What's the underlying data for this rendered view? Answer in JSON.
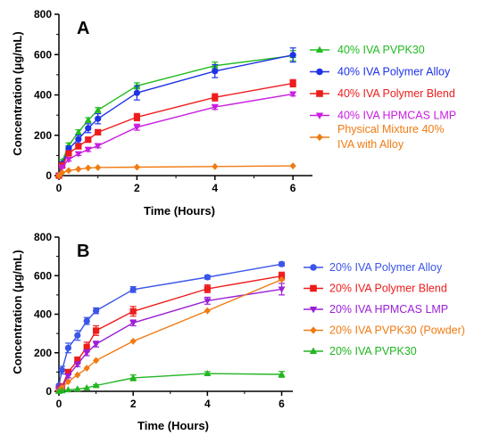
{
  "colors": {
    "green": "#22bb22",
    "blue": "#1f33e6",
    "red": "#ee1c1c",
    "magenta": "#c81ee0",
    "orange": "#f07b12",
    "blue_light": "#3a55e8",
    "purple": "#9b1fd8",
    "green_b": "#22b522"
  },
  "chart_data": [
    {
      "type": "line",
      "panel": "A",
      "xlabel": "Time  (Hours)",
      "ylabel": "Concentration  (μg/mL)",
      "xlim": [
        0,
        6.5
      ],
      "ylim": [
        0,
        800
      ],
      "xticks": [
        "0",
        "2",
        "4",
        "6"
      ],
      "yticks": [
        "0",
        "200",
        "400",
        "600",
        "800"
      ],
      "legend_position": "right",
      "series": [
        {
          "name": "40% IVA PVPK30",
          "color": "green",
          "marker": "triangle-up",
          "x": [
            0,
            0.083,
            0.25,
            0.5,
            0.75,
            1,
            2,
            4,
            6
          ],
          "y": [
            0,
            70,
            150,
            215,
            275,
            325,
            445,
            545,
            595
          ],
          "err": [
            0,
            10,
            12,
            12,
            12,
            12,
            15,
            18,
            25
          ]
        },
        {
          "name": "40% IVA Polymer  Alloy",
          "color": "blue",
          "marker": "circle",
          "x": [
            0,
            0.083,
            0.25,
            0.5,
            0.75,
            1,
            2,
            4,
            6
          ],
          "y": [
            0,
            58,
            132,
            180,
            235,
            282,
            410,
            518,
            598
          ],
          "err": [
            0,
            8,
            15,
            20,
            22,
            25,
            35,
            32,
            35
          ]
        },
        {
          "name": "40% IVA Polymer Blend",
          "color": "red",
          "marker": "square",
          "x": [
            0,
            0.083,
            0.25,
            0.5,
            0.75,
            1,
            2,
            4,
            6
          ],
          "y": [
            0,
            50,
            110,
            145,
            178,
            215,
            290,
            388,
            458
          ],
          "err": [
            0,
            6,
            10,
            10,
            12,
            12,
            18,
            18,
            18
          ]
        },
        {
          "name": "40% IVA HPMCAS LMP",
          "color": "magenta",
          "marker": "triangle-down",
          "x": [
            0,
            0.083,
            0.25,
            0.5,
            0.75,
            1,
            2,
            4,
            6
          ],
          "y": [
            0,
            42,
            80,
            108,
            130,
            148,
            240,
            340,
            405
          ],
          "err": [
            0,
            5,
            8,
            8,
            10,
            10,
            15,
            12,
            10
          ]
        },
        {
          "name": "Physical Mixture 40% IVA with Alloy",
          "legend_lines": [
            "Physical Mixture 40%",
            "IVA with Alloy"
          ],
          "color": "orange",
          "marker": "diamond",
          "x": [
            0,
            0.083,
            0.25,
            0.5,
            0.75,
            1,
            2,
            4,
            6
          ],
          "y": [
            0,
            15,
            25,
            32,
            38,
            40,
            42,
            45,
            48
          ],
          "err": [
            0,
            0,
            0,
            0,
            0,
            0,
            0,
            0,
            0
          ]
        }
      ]
    },
    {
      "type": "line",
      "panel": "B",
      "xlabel": "Time (Hours)",
      "ylabel": "Concentration  (μg/mL)",
      "xlim": [
        0,
        6.3
      ],
      "ylim": [
        0,
        800
      ],
      "xticks": [
        "0",
        "2",
        "4",
        "6"
      ],
      "yticks": [
        "0",
        "200",
        "400",
        "600",
        "800"
      ],
      "legend_position": "right",
      "series": [
        {
          "name": "20% IVA Polymer Alloy",
          "color": "blue_light",
          "marker": "circle",
          "x": [
            0,
            0.083,
            0.25,
            0.5,
            0.75,
            1,
            2,
            4,
            6
          ],
          "y": [
            30,
            110,
            225,
            290,
            365,
            418,
            528,
            592,
            660
          ],
          "err": [
            5,
            20,
            25,
            25,
            18,
            15,
            15,
            10,
            10
          ]
        },
        {
          "name": "20% IVA Polymer Blend",
          "color": "red",
          "marker": "square",
          "x": [
            0,
            0.083,
            0.25,
            0.5,
            0.75,
            1,
            2,
            4,
            6
          ],
          "y": [
            10,
            25,
            100,
            160,
            230,
            315,
            415,
            532,
            598
          ],
          "err": [
            3,
            8,
            12,
            18,
            25,
            25,
            25,
            20,
            20
          ]
        },
        {
          "name": "20% IVA HPMCAS LMP",
          "color": "purple",
          "marker": "triangle-down",
          "x": [
            0,
            0.083,
            0.25,
            0.5,
            0.75,
            1,
            2,
            4,
            6
          ],
          "y": [
            10,
            22,
            80,
            140,
            200,
            245,
            355,
            470,
            530
          ],
          "err": [
            3,
            5,
            10,
            12,
            15,
            15,
            15,
            18,
            30
          ]
        },
        {
          "name": "20% IVA PVPK30 (Powder)",
          "color": "orange",
          "marker": "diamond",
          "x": [
            0,
            0.083,
            0.25,
            0.5,
            0.75,
            1,
            2,
            4,
            6
          ],
          "y": [
            5,
            20,
            50,
            85,
            120,
            160,
            260,
            418,
            580
          ],
          "err": [
            0,
            0,
            0,
            0,
            0,
            0,
            0,
            0,
            0
          ]
        },
        {
          "name": "20% IVA PVPK30",
          "color": "green_b",
          "marker": "triangle-up",
          "x": [
            0,
            0.083,
            0.25,
            0.5,
            0.75,
            1,
            2,
            4,
            6
          ],
          "y": [
            0,
            3,
            8,
            12,
            18,
            30,
            70,
            92,
            88
          ],
          "err": [
            0,
            0,
            0,
            0,
            0,
            5,
            15,
            10,
            15
          ]
        }
      ]
    }
  ]
}
